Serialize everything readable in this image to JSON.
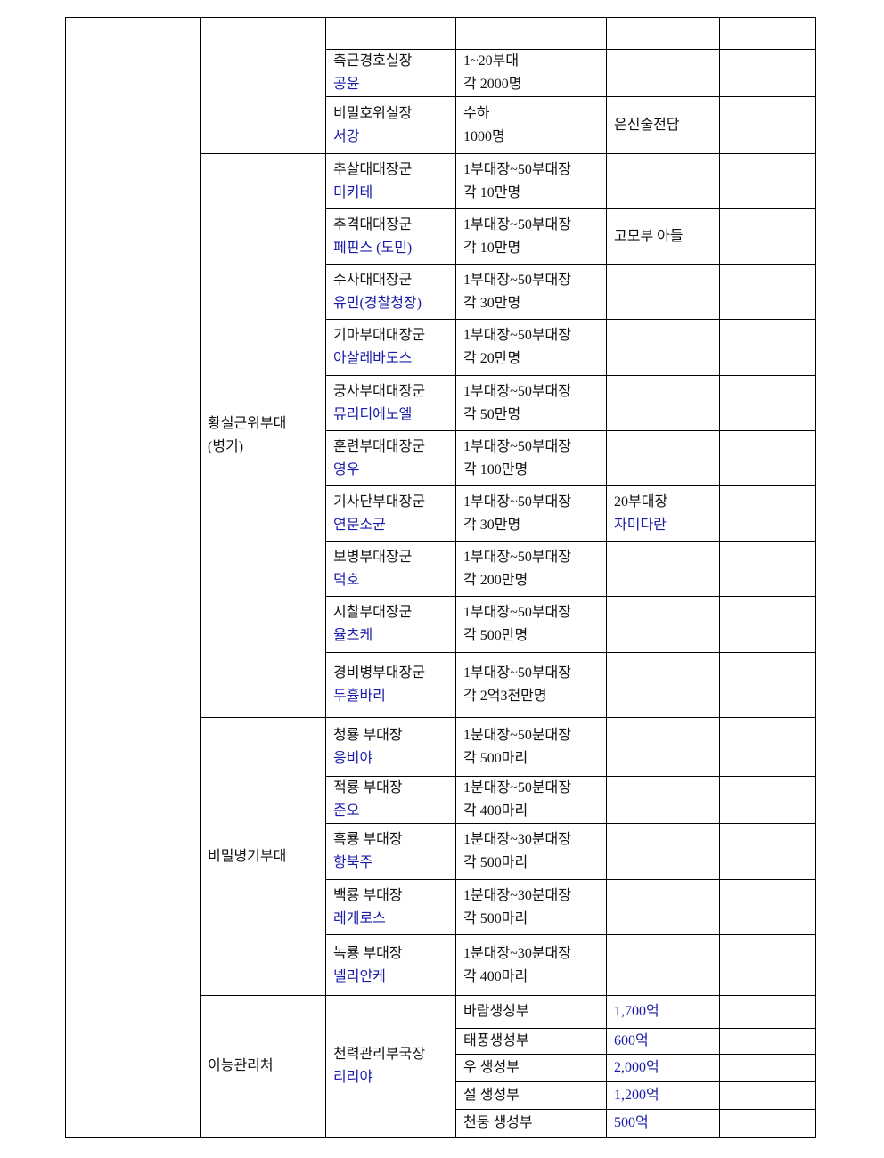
{
  "colors": {
    "name_text": "#1a1aa8",
    "text": "#111111",
    "border": "#000000"
  },
  "top_group": {
    "label": "",
    "rows": [
      {
        "title": "",
        "name": "",
        "size1": "",
        "size2": "",
        "note1": "",
        "note2": ""
      },
      {
        "title": "측근경호실장",
        "name": "공윤",
        "size1": "1~20부대",
        "size2": "각 2000명",
        "note1": "",
        "note2": ""
      },
      {
        "title": "비밀호위실장",
        "name": "서강",
        "size1": "수하",
        "size2": "1000명",
        "note1": "은신술전담",
        "note2": ""
      }
    ]
  },
  "imperial_guard": {
    "label": "황실근위부대\n(병기)",
    "label_line1": "황실근위부대",
    "label_line2": "(병기)",
    "rows": [
      {
        "title": "추살대대장군",
        "name": "미키테",
        "size1": "1부대장~50부대장",
        "size2": "각 10만명",
        "note1": "",
        "note2": ""
      },
      {
        "title": "추격대대장군",
        "name": "페핀스 (도민)",
        "size1": "1부대장~50부대장",
        "size2": "각 10만명",
        "note1": "고모부 아들",
        "note2": ""
      },
      {
        "title": "수사대대장군",
        "name": "유민(경찰청장)",
        "size1": "1부대장~50부대장",
        "size2": "각 30만명",
        "note1": "",
        "note2": ""
      },
      {
        "title": "기마부대대장군",
        "name": "아살레바도스",
        "size1": "1부대장~50부대장",
        "size2": "각 20만명",
        "note1": "",
        "note2": ""
      },
      {
        "title": "궁사부대대장군",
        "name": "뮤리티에노엘",
        "size1": "1부대장~50부대장",
        "size2": "각 50만명",
        "note1": "",
        "note2": ""
      },
      {
        "title": "훈련부대대장군",
        "name": "영우",
        "size1": "1부대장~50부대장",
        "size2": "각 100만명",
        "note1": "",
        "note2": ""
      },
      {
        "title": "기사단부대장군",
        "name": "연문소균",
        "size1": "1부대장~50부대장",
        "size2": "각 30만명",
        "note1": "20부대장",
        "note2": "자미다란"
      },
      {
        "title": "보병부대장군",
        "name": "덕호",
        "size1": "1부대장~50부대장",
        "size2": "각 200만명",
        "note1": "",
        "note2": ""
      },
      {
        "title": "시찰부대장군",
        "name": "율츠케",
        "size1": "1부대장~50부대장",
        "size2": "각 500만명",
        "note1": "",
        "note2": ""
      },
      {
        "title": "경비병부대장군",
        "name": "두휼바리",
        "size1": "1부대장~50부대장",
        "size2": "각 2억3천만명",
        "note1": "",
        "note2": ""
      }
    ]
  },
  "secret_weapons": {
    "label": "비밀병기부대",
    "rows": [
      {
        "title": "청룡 부대장",
        "name": "웅비야",
        "size1": "1분대장~50분대장",
        "size2": "각 500마리",
        "note1": "",
        "note2": ""
      },
      {
        "title": "적룡 부대장",
        "name": "준오",
        "size1": "1분대장~50분대장",
        "size2": "각 400마리",
        "note1": "",
        "note2": ""
      },
      {
        "title": "흑룡 부대장",
        "name": "항북주",
        "size1": "1분대장~30분대장",
        "size2": "각 500마리",
        "note1": "",
        "note2": ""
      },
      {
        "title": "백룡 부대장",
        "name": "레게로스",
        "size1": "1분대장~30분대장",
        "size2": "각 500마리",
        "note1": "",
        "note2": ""
      },
      {
        "title": "녹룡 부대장",
        "name": "넬리얀케",
        "size1": "1분대장~30분대장",
        "size2": "각 400마리",
        "note1": "",
        "note2": ""
      }
    ]
  },
  "ability_office": {
    "label": "이능관리처",
    "head_title": "천력관리부국장",
    "head_name": "리리야",
    "rows": [
      {
        "dept": "바람생성부",
        "budget": "1,700억"
      },
      {
        "dept": "태풍생성부",
        "budget": "600억"
      },
      {
        "dept": "우 생성부",
        "budget": "2,000억"
      },
      {
        "dept": "설 생성부",
        "budget": "1,200억"
      },
      {
        "dept": "천둥 생성부",
        "budget": "500억"
      }
    ]
  }
}
